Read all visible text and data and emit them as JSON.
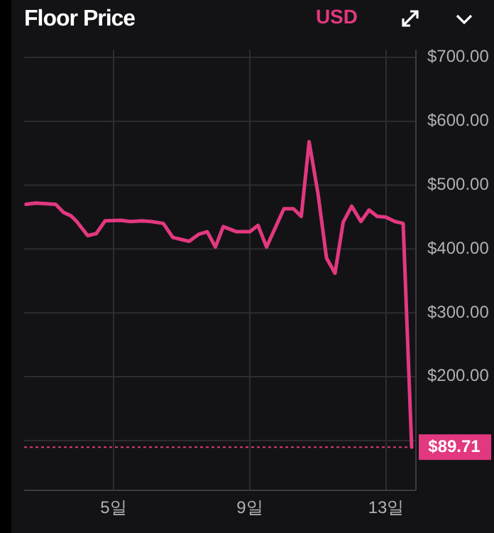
{
  "chart_data": {
    "type": "line",
    "title": "Floor Price",
    "annotations": [
      "USD"
    ],
    "x": [
      2.43,
      2.71,
      3.3,
      3.54,
      3.75,
      3.92,
      4.24,
      4.49,
      4.75,
      5.21,
      5.49,
      5.83,
      6.11,
      6.46,
      6.74,
      7.22,
      7.5,
      7.75,
      7.99,
      8.22,
      8.61,
      9.0,
      9.24,
      9.49,
      10.0,
      10.28,
      10.51,
      10.74,
      11.0,
      11.25,
      11.5,
      11.74,
      11.99,
      12.26,
      12.5,
      12.74,
      12.99,
      13.26,
      13.5,
      13.75
    ],
    "series": [
      {
        "color": "#e2387f",
        "values": [
          470,
          472,
          470,
          457,
          452,
          443,
          421,
          424,
          444,
          445,
          443,
          444,
          443,
          440,
          418,
          412,
          423,
          427,
          403,
          435,
          427,
          427,
          437,
          403,
          463,
          463,
          451,
          568,
          487,
          386,
          362,
          442,
          467,
          443,
          461,
          451,
          450,
          443,
          440,
          89.71
        ]
      }
    ],
    "xlim": [
      2.375,
      13.875
    ],
    "xticks": [
      {
        "value": 5,
        "label": "5일"
      },
      {
        "value": 9,
        "label": "9일"
      },
      {
        "value": 13,
        "label": "13일"
      }
    ],
    "ylim": [
      22,
      712
    ],
    "yticks": [
      {
        "value": 100,
        "label": null
      },
      {
        "value": 200,
        "label": "$200.00"
      },
      {
        "value": 300,
        "label": "$300.00"
      },
      {
        "value": 400,
        "label": "$400.00"
      },
      {
        "value": 500,
        "label": "$500.00"
      },
      {
        "value": 600,
        "label": "$600.00"
      },
      {
        "value": 700,
        "label": "$700.00"
      }
    ],
    "ref_lines": [
      {
        "axis": "y",
        "value": 89.71,
        "label": "$89.71",
        "color": "#e2387f",
        "line_style": "dotted"
      }
    ],
    "grid": true,
    "marker": "none",
    "line_style": "solid"
  }
}
